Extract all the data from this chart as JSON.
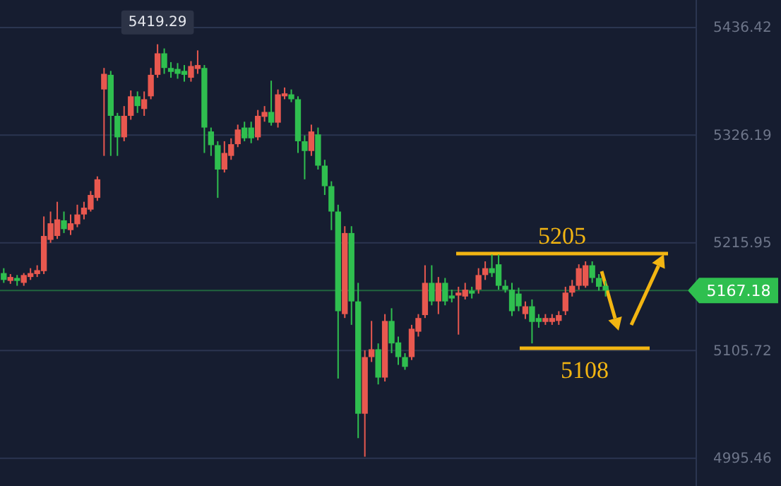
{
  "chart_data": {
    "type": "candlestick",
    "categories": [
      null,
      null,
      null,
      null,
      null,
      null,
      null,
      null,
      null,
      null,
      null,
      null,
      null,
      null,
      null,
      null,
      null,
      null,
      null,
      null,
      null,
      null,
      null,
      null,
      null,
      null,
      null,
      null,
      null,
      null,
      null,
      null,
      null,
      null,
      null,
      null,
      null,
      null,
      null,
      null,
      null,
      null,
      null,
      null,
      null,
      null,
      null,
      null,
      null,
      null,
      null,
      null,
      null,
      null,
      null,
      null,
      null,
      null,
      null,
      null,
      null,
      null,
      null,
      null,
      null,
      null,
      null,
      null,
      null,
      null,
      null,
      null,
      null,
      null,
      null,
      null,
      null,
      null,
      null,
      null,
      null,
      null,
      null,
      null,
      null,
      null,
      null,
      null,
      null,
      null,
      null,
      null,
      null,
      null,
      null,
      null,
      null,
      null,
      null,
      null,
      null,
      null,
      null,
      null
    ],
    "ohlc": [
      [
        5185,
        5190,
        5175,
        5178
      ],
      [
        5177,
        5184,
        5174,
        5181
      ],
      [
        5180,
        5183,
        5172,
        5177
      ],
      [
        5175,
        5185,
        5172,
        5183
      ],
      [
        5181,
        5190,
        5178,
        5185
      ],
      [
        5184,
        5193,
        5181,
        5188
      ],
      [
        5187,
        5243,
        5184,
        5223
      ],
      [
        5219,
        5248,
        5216,
        5236
      ],
      [
        5223,
        5258,
        5220,
        5240
      ],
      [
        5239,
        5248,
        5226,
        5230
      ],
      [
        5229,
        5245,
        5224,
        5236
      ],
      [
        5235,
        5255,
        5232,
        5245
      ],
      [
        5245,
        5258,
        5240,
        5252
      ],
      [
        5250,
        5269,
        5248,
        5265
      ],
      [
        5262,
        5284,
        5259,
        5281
      ],
      [
        5373,
        5395,
        5305,
        5389
      ],
      [
        5388,
        5392,
        5305,
        5346
      ],
      [
        5346,
        5349,
        5305,
        5324
      ],
      [
        5324,
        5356,
        5320,
        5346
      ],
      [
        5346,
        5372,
        5342,
        5366
      ],
      [
        5366,
        5371,
        5349,
        5356
      ],
      [
        5353,
        5371,
        5346,
        5363
      ],
      [
        5366,
        5395,
        5363,
        5388
      ],
      [
        5388,
        5419.29,
        5385,
        5410
      ],
      [
        5410,
        5415,
        5389,
        5395
      ],
      [
        5395,
        5401,
        5385,
        5391
      ],
      [
        5394,
        5400,
        5384,
        5389
      ],
      [
        5392,
        5398,
        5381,
        5388
      ],
      [
        5385,
        5402,
        5381,
        5397
      ],
      [
        5394,
        5413,
        5389,
        5398
      ],
      [
        5395,
        5398,
        5308,
        5334
      ],
      [
        5330,
        5334,
        5305,
        5316
      ],
      [
        5316,
        5320,
        5262,
        5291
      ],
      [
        5291,
        5320,
        5288,
        5308
      ],
      [
        5305,
        5323,
        5301,
        5317
      ],
      [
        5317,
        5337,
        5314,
        5332
      ],
      [
        5334,
        5340,
        5320,
        5323
      ],
      [
        5334,
        5340,
        5318,
        5323
      ],
      [
        5324,
        5352,
        5321,
        5346
      ],
      [
        5345,
        5356,
        5340,
        5350
      ],
      [
        5350,
        5382,
        5336,
        5339
      ],
      [
        5339,
        5373,
        5334,
        5368
      ],
      [
        5366,
        5375,
        5363,
        5369
      ],
      [
        5368,
        5373,
        5360,
        5363
      ],
      [
        5363,
        5366,
        5308,
        5320
      ],
      [
        5320,
        5326,
        5281,
        5310
      ],
      [
        5310,
        5337,
        5305,
        5330
      ],
      [
        5327,
        5334,
        5291,
        5295
      ],
      [
        5295,
        5301,
        5265,
        5274
      ],
      [
        5274,
        5279,
        5229,
        5248
      ],
      [
        5248,
        5255,
        5077,
        5146
      ],
      [
        5143,
        5233,
        5139,
        5226
      ],
      [
        5226,
        5233,
        5132,
        5156
      ],
      [
        5156,
        5175,
        5016,
        5041
      ],
      [
        5041,
        5106,
        4997,
        5099
      ],
      [
        5099,
        5136,
        5094,
        5107
      ],
      [
        5107,
        5113,
        5071,
        5078
      ],
      [
        5078,
        5143,
        5074,
        5136
      ],
      [
        5136,
        5149,
        5103,
        5113
      ],
      [
        5114,
        5120,
        5091,
        5099
      ],
      [
        5099,
        5103,
        5086,
        5089
      ],
      [
        5099,
        5132,
        5096,
        5128
      ],
      [
        5125,
        5143,
        5120,
        5139
      ],
      [
        5142,
        5193,
        5139,
        5175
      ],
      [
        5175,
        5193,
        5152,
        5156
      ],
      [
        5156,
        5181,
        5143,
        5175
      ],
      [
        5175,
        5180,
        5152,
        5156
      ],
      [
        5162,
        5168,
        5155,
        5159
      ],
      [
        5162,
        5171,
        5122,
        5165
      ],
      [
        5161,
        5175,
        5158,
        5168
      ],
      [
        5167,
        5171,
        5159,
        5164
      ],
      [
        5168,
        5190,
        5164,
        5183
      ],
      [
        5183,
        5197,
        5178,
        5190
      ],
      [
        5190,
        5204,
        5181,
        5185
      ],
      [
        5194,
        5204,
        5168,
        5172
      ],
      [
        5172,
        5178,
        5165,
        5168
      ],
      [
        5168,
        5175,
        5141,
        5146
      ],
      [
        5164,
        5170,
        5146,
        5151
      ],
      [
        5143,
        5156,
        5138,
        5151
      ],
      [
        5151,
        5158,
        5113,
        5135
      ],
      [
        5139,
        5143,
        5129,
        5135
      ],
      [
        5135,
        5143,
        5132,
        5139
      ],
      [
        5135,
        5143,
        5132,
        5139
      ],
      [
        5136,
        5146,
        5132,
        5142
      ],
      [
        5146,
        5171,
        5142,
        5165
      ],
      [
        5165,
        5178,
        5161,
        5172
      ],
      [
        5172,
        5194,
        5168,
        5190
      ],
      [
        5172,
        5197,
        5170,
        5193
      ],
      [
        5193,
        5197,
        5175,
        5180
      ],
      [
        5180,
        5184,
        5167,
        5171
      ],
      [
        5172,
        5177,
        5161,
        5167.18
      ],
      null,
      null,
      null,
      null,
      null,
      null,
      null,
      null,
      null,
      null,
      null,
      null,
      null
    ],
    "colors": [
      "#2fbf4f",
      "#e8584f",
      "#2fbf4f",
      "#e8584f",
      "#e8584f",
      "#e8584f",
      "#e8584f",
      "#e8584f",
      "#e8584f",
      "#2fbf4f",
      "#e8584f",
      "#e8584f",
      "#e8584f",
      "#e8584f",
      "#e8584f",
      "#e8584f",
      "#2fbf4f",
      "#2fbf4f",
      "#e8584f",
      "#e8584f",
      "#2fbf4f",
      "#e8584f",
      "#e8584f",
      "#e8584f",
      "#2fbf4f",
      "#2fbf4f",
      "#2fbf4f",
      "#2fbf4f",
      "#e8584f",
      "#e8584f",
      "#2fbf4f",
      "#2fbf4f",
      "#2fbf4f",
      "#e8584f",
      "#e8584f",
      "#e8584f",
      "#2fbf4f",
      "#2fbf4f",
      "#e8584f",
      "#e8584f",
      "#2fbf4f",
      "#e8584f",
      "#e8584f",
      "#2fbf4f",
      "#2fbf4f",
      "#2fbf4f",
      "#e8584f",
      "#2fbf4f",
      "#2fbf4f",
      "#2fbf4f",
      "#2fbf4f",
      "#e8584f",
      "#2fbf4f",
      "#2fbf4f",
      "#e8584f",
      "#e8584f",
      "#2fbf4f",
      "#e8584f",
      "#2fbf4f",
      "#2fbf4f",
      "#2fbf4f",
      "#e8584f",
      "#e8584f",
      "#e8584f",
      "#2fbf4f",
      "#e8584f",
      "#2fbf4f",
      "#2fbf4f",
      "#e8584f",
      "#e8584f",
      "#2fbf4f",
      "#e8584f",
      "#e8584f",
      "#2fbf4f",
      "#2fbf4f",
      "#2fbf4f",
      "#2fbf4f",
      "#2fbf4f",
      "#e8584f",
      "#2fbf4f",
      "#2fbf4f",
      "#e8584f",
      "#e8584f",
      "#e8584f",
      "#e8584f",
      "#e8584f",
      "#e8584f",
      "#e8584f",
      "#2fbf4f",
      "#2fbf4f",
      "#2fbf4f",
      null,
      null,
      null,
      null,
      null,
      null,
      null,
      null,
      null,
      null,
      null,
      null,
      null
    ],
    "ylim": [
      4967,
      5464.6
    ],
    "yticks": [
      5436.42,
      5326.19,
      5215.95,
      5105.72,
      4995.46
    ],
    "tick_labels": "y",
    "grid": "y",
    "annotations": [
      "5419.29"
    ],
    "ref_lines": [
      {
        "axis": "y",
        "value": 5205,
        "label": "5205",
        "color": "#f2b512"
      },
      {
        "axis": "y",
        "value": 5108,
        "label": "5108",
        "color": "#f2b512"
      },
      {
        "axis": "y",
        "value": 5167.18,
        "label": "5167.18",
        "color": "#2fbf4f"
      }
    ]
  }
}
